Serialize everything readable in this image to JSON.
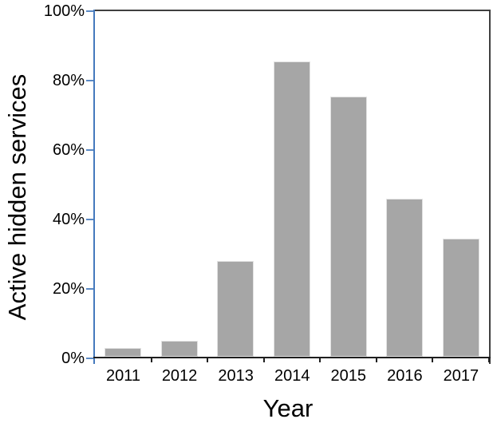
{
  "chart_data": {
    "type": "bar",
    "title": "",
    "xlabel": "Year",
    "ylabel": "Active hidden services",
    "categories": [
      "2011",
      "2012",
      "2013",
      "2014",
      "2015",
      "2016",
      "2017"
    ],
    "values": [
      2.5,
      4.5,
      27.5,
      85,
      75,
      45.5,
      34
    ],
    "value_unit": "%",
    "ylim": [
      0,
      100
    ],
    "yticks": {
      "labels": [
        "0%",
        "20%",
        "40%",
        "60%",
        "80%",
        "100%"
      ],
      "values": [
        0,
        20,
        40,
        60,
        80,
        100
      ]
    },
    "grid": false,
    "legend": null,
    "colors": {
      "bar_fill": "#a6a6a6",
      "bar_edge": "#e2e2e2",
      "y_axis": "#4579bd",
      "y_tick": "#5b8ac5",
      "x_axis": "#1f1f1f",
      "border": "#3f3f3f",
      "text": "#000000",
      "background": "#ffffff"
    }
  }
}
